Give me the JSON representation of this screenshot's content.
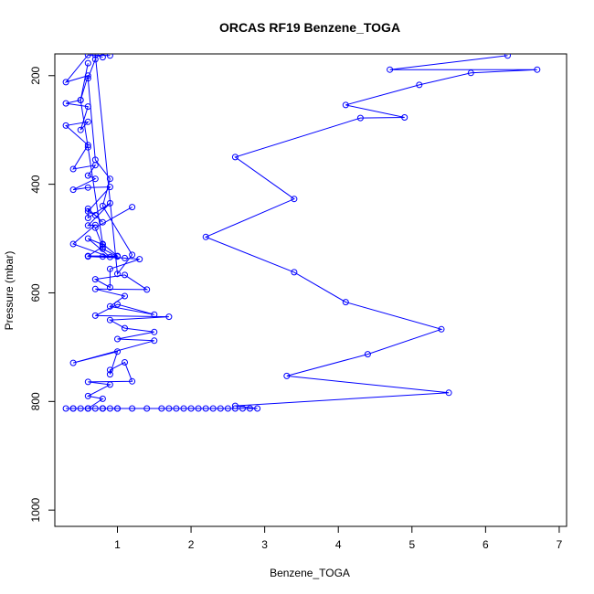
{
  "chart_data": {
    "type": "line",
    "title": "ORCAS RF19 Benzene_TOGA",
    "xlabel": "Benzene_TOGA",
    "ylabel": "Pressure (mbar)",
    "xlim": [
      0.15,
      7.1
    ],
    "ylim": [
      160,
      1030
    ],
    "y_reversed": true,
    "x_ticks": [
      1,
      2,
      3,
      4,
      5,
      6,
      7
    ],
    "y_ticks": [
      200,
      400,
      600,
      800,
      1000
    ],
    "grid": false,
    "legend": "none",
    "colors": {
      "series": "#0000ff",
      "frame": "#000000"
    },
    "series": [
      {
        "values": [
          [
            0.8,
            813
          ],
          [
            1.0,
            813
          ],
          [
            1.2,
            813
          ],
          [
            1.4,
            813
          ],
          [
            1.6,
            813
          ],
          [
            1.7,
            813
          ],
          [
            1.8,
            813
          ],
          [
            1.9,
            813
          ],
          [
            2.0,
            813
          ],
          [
            2.1,
            813
          ],
          [
            2.2,
            813
          ],
          [
            2.3,
            813
          ],
          [
            2.4,
            813
          ],
          [
            2.5,
            813
          ],
          [
            2.6,
            813
          ],
          [
            2.7,
            813
          ],
          [
            2.8,
            813
          ],
          [
            2.9,
            813
          ],
          [
            2.6,
            808
          ],
          [
            5.5,
            784
          ],
          [
            3.3,
            753
          ],
          [
            4.4,
            713
          ],
          [
            5.4,
            667
          ],
          [
            4.1,
            617
          ],
          [
            3.4,
            562
          ],
          [
            2.2,
            497
          ],
          [
            3.4,
            427
          ],
          [
            2.6,
            350
          ],
          [
            4.3,
            278
          ],
          [
            4.9,
            277
          ],
          [
            4.1,
            254
          ],
          [
            5.1,
            217
          ],
          [
            5.8,
            195
          ],
          [
            6.7,
            189
          ],
          [
            4.7,
            189
          ],
          [
            6.3,
            163
          ]
        ]
      },
      {
        "values": [
          [
            0.3,
            813
          ],
          [
            0.4,
            813
          ],
          [
            0.5,
            813
          ],
          [
            0.6,
            813
          ],
          [
            0.7,
            813
          ],
          [
            0.8,
            813
          ],
          [
            0.9,
            813
          ],
          [
            1.0,
            813
          ],
          [
            0.8,
            813
          ],
          [
            0.6,
            813
          ],
          [
            0.4,
            813
          ]
        ]
      },
      {
        "values": [
          [
            0.6,
            813
          ],
          [
            0.8,
            795
          ],
          [
            0.6,
            790
          ],
          [
            0.9,
            769
          ],
          [
            0.6,
            764
          ],
          [
            1.2,
            763
          ],
          [
            1.1,
            728
          ],
          [
            0.9,
            742
          ],
          [
            0.9,
            750
          ],
          [
            1.0,
            708
          ],
          [
            0.4,
            729
          ],
          [
            1.5,
            688
          ],
          [
            1.0,
            685
          ],
          [
            1.5,
            672
          ],
          [
            1.1,
            665
          ],
          [
            0.9,
            650
          ],
          [
            1.7,
            644
          ],
          [
            0.7,
            642
          ],
          [
            1.0,
            621
          ],
          [
            1.5,
            640
          ],
          [
            0.9,
            625
          ],
          [
            1.1,
            606
          ],
          [
            0.7,
            593
          ],
          [
            1.4,
            594
          ],
          [
            1.1,
            567
          ],
          [
            0.7,
            575
          ],
          [
            0.9,
            590
          ],
          [
            0.9,
            556
          ],
          [
            1.3,
            538
          ],
          [
            0.8,
            533
          ],
          [
            1.1,
            536
          ],
          [
            0.6,
            533
          ],
          [
            1.0,
            533
          ],
          [
            0.8,
            519
          ],
          [
            0.8,
            511
          ],
          [
            0.6,
            500
          ],
          [
            0.9,
            534
          ],
          [
            0.4,
            510
          ],
          [
            0.7,
            475
          ],
          [
            0.6,
            476
          ],
          [
            0.9,
            435
          ],
          [
            0.6,
            462
          ],
          [
            0.6,
            445
          ],
          [
            0.8,
            470
          ],
          [
            0.7,
            457
          ],
          [
            0.6,
            450
          ],
          [
            0.9,
            405
          ],
          [
            0.6,
            406
          ],
          [
            0.4,
            410
          ],
          [
            0.7,
            390
          ],
          [
            0.6,
            384
          ],
          [
            0.7,
            365
          ],
          [
            0.4,
            372
          ],
          [
            0.6,
            328
          ],
          [
            0.3,
            292
          ],
          [
            0.6,
            285
          ],
          [
            0.5,
            300
          ],
          [
            0.6,
            257
          ],
          [
            0.3,
            251
          ],
          [
            0.5,
            245
          ],
          [
            0.6,
            200
          ],
          [
            0.3,
            212
          ],
          [
            0.6,
            162
          ],
          [
            0.9,
            163
          ]
        ]
      },
      {
        "values": [
          [
            1.2,
            442
          ],
          [
            0.7,
            480
          ],
          [
            0.8,
            515
          ],
          [
            0.6,
            532
          ],
          [
            1.0,
            532
          ],
          [
            0.8,
            510
          ],
          [
            0.6,
            332
          ],
          [
            0.5,
            245
          ],
          [
            0.6,
            177
          ]
        ]
      },
      {
        "values": [
          [
            0.7,
            170
          ],
          [
            0.6,
            205
          ],
          [
            0.7,
            355
          ],
          [
            0.9,
            390
          ],
          [
            0.8,
            440
          ],
          [
            1.2,
            530
          ],
          [
            1.0,
            565
          ],
          [
            0.7,
            162
          ],
          [
            0.8,
            166
          ]
        ]
      }
    ]
  }
}
